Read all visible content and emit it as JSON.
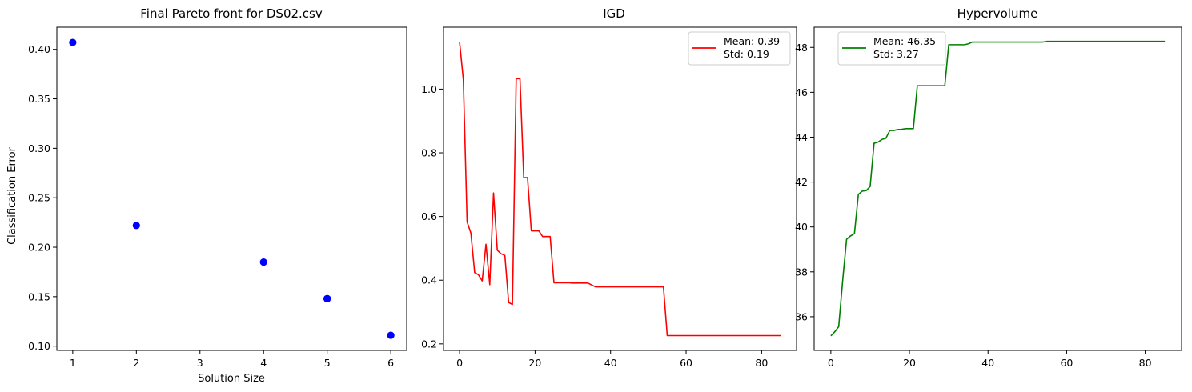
{
  "chart_data": [
    {
      "type": "scatter",
      "title": "Final Pareto front for DS02.csv",
      "xlabel": "Solution Size",
      "ylabel": "Classification Error",
      "xlim": [
        0.75,
        6.25
      ],
      "ylim": [
        0.0957,
        0.4224
      ],
      "xticks": [
        1,
        2,
        3,
        4,
        5,
        6
      ],
      "yticks": [
        0.1,
        0.15,
        0.2,
        0.25,
        0.3,
        0.35,
        0.4
      ],
      "ytick_labels": [
        "0.10",
        "0.15",
        "0.20",
        "0.25",
        "0.30",
        "0.35",
        "0.40"
      ],
      "marker_color": "#0000ff",
      "series": [
        {
          "x": [
            1,
            2,
            4,
            5,
            5,
            5,
            6
          ],
          "y": [
            0.407,
            0.222,
            0.185,
            0.148,
            0.148,
            0.148,
            0.111
          ]
        }
      ]
    },
    {
      "type": "line",
      "title": "IGD",
      "xlabel": "",
      "ylabel": "",
      "xlim": [
        -4.25,
        89.25
      ],
      "ylim": [
        0.1795,
        1.1945
      ],
      "xticks": [
        0,
        20,
        40,
        60,
        80
      ],
      "yticks": [
        0.2,
        0.4,
        0.6,
        0.8,
        1.0
      ],
      "ytick_labels": [
        "0.2",
        "0.4",
        "0.6",
        "0.8",
        "1.0"
      ],
      "legend": {
        "position": "top-right",
        "lines": [
          "Mean: 0.39",
          "Std: 0.19"
        ]
      },
      "series": [
        {
          "color": "#ff0000",
          "x": [
            0,
            1,
            2,
            3,
            4,
            5,
            6,
            7,
            8,
            9,
            10,
            11,
            12,
            13,
            14,
            15,
            16,
            17,
            18,
            19,
            20,
            21,
            22,
            23,
            24,
            25,
            26,
            27,
            28,
            29,
            30,
            31,
            32,
            33,
            34,
            35,
            36,
            37,
            38,
            39,
            40,
            41,
            42,
            43,
            44,
            45,
            46,
            47,
            48,
            49,
            50,
            51,
            52,
            53,
            54,
            55,
            56,
            57,
            58,
            59,
            60,
            61,
            62,
            63,
            64,
            65,
            66,
            67,
            68,
            69,
            70,
            71,
            72,
            73,
            74,
            75,
            76,
            77,
            78,
            79,
            80,
            81,
            82,
            83,
            84,
            85
          ],
          "y": [
            1.148,
            1.03,
            0.583,
            0.548,
            0.424,
            0.417,
            0.398,
            0.513,
            0.386,
            0.674,
            0.494,
            0.483,
            0.478,
            0.33,
            0.324,
            1.033,
            1.033,
            0.722,
            0.722,
            0.555,
            0.555,
            0.555,
            0.537,
            0.537,
            0.537,
            0.392,
            0.392,
            0.392,
            0.392,
            0.392,
            0.391,
            0.391,
            0.391,
            0.391,
            0.391,
            0.385,
            0.379,
            0.379,
            0.379,
            0.379,
            0.379,
            0.379,
            0.379,
            0.379,
            0.379,
            0.379,
            0.379,
            0.379,
            0.379,
            0.379,
            0.379,
            0.379,
            0.379,
            0.379,
            0.379,
            0.226,
            0.226,
            0.226,
            0.226,
            0.226,
            0.226,
            0.226,
            0.226,
            0.226,
            0.226,
            0.226,
            0.226,
            0.226,
            0.226,
            0.226,
            0.226,
            0.226,
            0.226,
            0.226,
            0.226,
            0.226,
            0.226,
            0.226,
            0.226,
            0.226,
            0.226,
            0.226,
            0.226,
            0.226,
            0.226,
            0.226
          ]
        }
      ]
    },
    {
      "type": "line",
      "title": "Hypervolume",
      "xlabel": "",
      "ylabel": "",
      "xlim": [
        -4.25,
        89.25
      ],
      "ylim": [
        34.5,
        48.9
      ],
      "xticks": [
        0,
        20,
        40,
        60,
        80
      ],
      "yticks": [
        36,
        38,
        40,
        42,
        44,
        46,
        48
      ],
      "ytick_labels": [
        "36",
        "38",
        "40",
        "42",
        "44",
        "46",
        "48"
      ],
      "legend": {
        "position": "top-left",
        "lines": [
          "Mean: 46.35",
          "Std: 3.27"
        ]
      },
      "series": [
        {
          "color": "#008000",
          "x": [
            0,
            1,
            2,
            3,
            4,
            5,
            6,
            7,
            8,
            9,
            10,
            11,
            12,
            13,
            14,
            15,
            16,
            17,
            18,
            19,
            20,
            21,
            22,
            23,
            24,
            25,
            26,
            27,
            28,
            29,
            30,
            31,
            32,
            33,
            34,
            35,
            36,
            37,
            38,
            39,
            40,
            41,
            42,
            43,
            44,
            45,
            46,
            47,
            48,
            49,
            50,
            51,
            52,
            53,
            54,
            55,
            56,
            57,
            58,
            59,
            60,
            61,
            62,
            63,
            64,
            65,
            66,
            67,
            68,
            69,
            70,
            71,
            72,
            73,
            74,
            75,
            76,
            77,
            78,
            79,
            80,
            81,
            82,
            83,
            84,
            85
          ],
          "y": [
            35.15,
            35.33,
            35.56,
            37.6,
            39.45,
            39.6,
            39.7,
            41.45,
            41.6,
            41.62,
            41.8,
            43.73,
            43.78,
            43.9,
            43.95,
            44.3,
            44.3,
            44.34,
            44.35,
            44.38,
            44.38,
            44.38,
            46.29,
            46.29,
            46.29,
            46.29,
            46.29,
            46.29,
            46.29,
            46.29,
            48.12,
            48.12,
            48.12,
            48.12,
            48.12,
            48.16,
            48.24,
            48.24,
            48.24,
            48.24,
            48.24,
            48.24,
            48.24,
            48.24,
            48.24,
            48.24,
            48.24,
            48.24,
            48.24,
            48.24,
            48.24,
            48.24,
            48.24,
            48.24,
            48.24,
            48.27,
            48.27,
            48.27,
            48.27,
            48.27,
            48.27,
            48.27,
            48.27,
            48.27,
            48.27,
            48.27,
            48.27,
            48.27,
            48.27,
            48.27,
            48.27,
            48.27,
            48.27,
            48.27,
            48.27,
            48.27,
            48.27,
            48.27,
            48.27,
            48.27,
            48.27,
            48.27,
            48.27,
            48.27,
            48.27,
            48.27
          ]
        }
      ]
    }
  ]
}
